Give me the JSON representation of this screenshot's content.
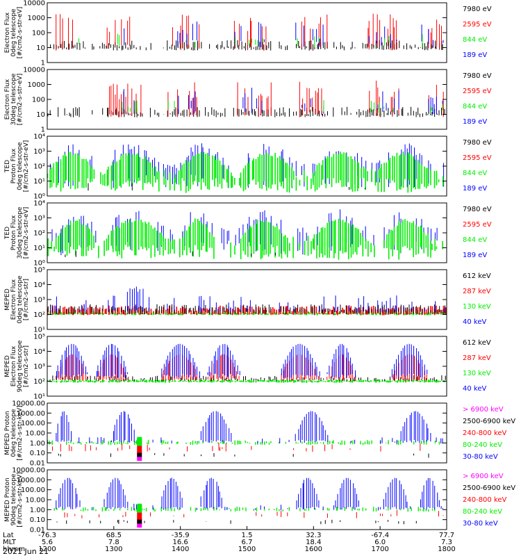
{
  "colors": {
    "black": "#000000",
    "red": "#ff0000",
    "green": "#00ee00",
    "blue": "#0000ff",
    "magenta": "#ff00ff"
  },
  "chart_data": [
    {
      "type": "line",
      "ylabel": "Electron Flux\n0deg telescope\n[#/cm2-s-str-eV]",
      "yscale": "log",
      "ylim": [
        1,
        10000
      ],
      "yticks": [
        "1",
        "10",
        "100",
        "1000",
        "10000"
      ],
      "legend": [
        {
          "name": "7980 eV",
          "color": "black"
        },
        {
          "name": "2595 eV",
          "color": "red"
        },
        {
          "name": "844 eV",
          "color": "green"
        },
        {
          "name": "189 eV",
          "color": "blue"
        }
      ],
      "style": "electron",
      "passes": [
        [
          0.02,
          0.08
        ],
        [
          0.14,
          0.22
        ],
        [
          0.3,
          0.38
        ],
        [
          0.46,
          0.56
        ],
        [
          0.62,
          0.7
        ],
        [
          0.8,
          0.88
        ],
        [
          0.93,
          0.99
        ]
      ]
    },
    {
      "type": "line",
      "ylabel": "Electron Flux\n30deg telescope\n[#/cm2-s-str-eV]",
      "yscale": "log",
      "ylim": [
        1,
        10000
      ],
      "yticks": [
        "1",
        "10",
        "100",
        "1000",
        "10000"
      ],
      "legend": [
        {
          "name": "7980 eV",
          "color": "black"
        },
        {
          "name": "2595 eV",
          "color": "red"
        },
        {
          "name": "844 eV",
          "color": "green"
        },
        {
          "name": "189 eV",
          "color": "blue"
        }
      ],
      "style": "electron",
      "passes": [
        [
          0.15,
          0.24
        ],
        [
          0.3,
          0.38
        ],
        [
          0.47,
          0.56
        ],
        [
          0.63,
          0.7
        ],
        [
          0.8,
          0.88
        ],
        [
          0.95,
          0.99
        ]
      ]
    },
    {
      "type": "line",
      "ylabel": "TED\nProton Flux\n0deg telescope\n[#/cm2-s-str-eV]",
      "yscale": "log",
      "ylim": [
        1,
        10000
      ],
      "yticks": [
        "10⁰",
        "10¹",
        "10²",
        "10³",
        "10⁴"
      ],
      "legend": [
        {
          "name": "7980 eV",
          "color": "black"
        },
        {
          "name": "2595 eV",
          "color": "red"
        },
        {
          "name": "844 eV",
          "color": "green"
        },
        {
          "name": "189 eV",
          "color": "blue"
        }
      ],
      "style": "proton",
      "passes": [
        [
          0.0,
          0.12
        ],
        [
          0.14,
          0.28
        ],
        [
          0.32,
          0.46
        ],
        [
          0.48,
          0.62
        ],
        [
          0.66,
          0.8
        ],
        [
          0.82,
          0.96
        ]
      ]
    },
    {
      "type": "line",
      "ylabel": "TED\nProton Flux\n30deg telescope\n[#/cm2-s-str-eV]",
      "yscale": "log",
      "ylim": [
        1,
        10000
      ],
      "yticks": [
        "10⁰",
        "10¹",
        "10²",
        "10³",
        "10⁴"
      ],
      "legend": [
        {
          "name": "7980 eV",
          "color": "black"
        },
        {
          "name": "2595 eV",
          "color": "red"
        },
        {
          "name": "844 eV",
          "color": "green"
        },
        {
          "name": "189 eV",
          "color": "blue"
        }
      ],
      "style": "proton",
      "passes": [
        [
          0.02,
          0.12
        ],
        [
          0.14,
          0.3
        ],
        [
          0.33,
          0.42
        ],
        [
          0.48,
          0.6
        ],
        [
          0.66,
          0.8
        ],
        [
          0.84,
          0.96
        ]
      ]
    },
    {
      "type": "line",
      "ylabel": "MEPED\nElectron Flux\n0deg telescope\n[#/cm2-s-str]",
      "yscale": "log",
      "ylim": [
        10,
        100000
      ],
      "yticks": [
        "10¹",
        "10²",
        "10³",
        "10⁴",
        "10⁵"
      ],
      "legend": [
        {
          "name": "612 keV",
          "color": "black"
        },
        {
          "name": "287 keV",
          "color": "red"
        },
        {
          "name": "130 keV",
          "color": "green"
        },
        {
          "name": "40 keV",
          "color": "blue"
        }
      ],
      "style": "meped0",
      "passes": [
        [
          0.2,
          0.24
        ]
      ]
    },
    {
      "type": "line",
      "ylabel": "MEPED\nElectron Flux\n90deg telescope\n[#/cm2-s-str]",
      "yscale": "log",
      "ylim": [
        10,
        100000
      ],
      "yticks": [
        "10¹",
        "10²",
        "10³",
        "10⁴",
        "10⁵"
      ],
      "legend": [
        {
          "name": "612 keV",
          "color": "black"
        },
        {
          "name": "287 keV",
          "color": "red"
        },
        {
          "name": "130 keV",
          "color": "green"
        },
        {
          "name": "40 keV",
          "color": "blue"
        }
      ],
      "style": "meped90",
      "passes": [
        [
          0.02,
          0.1
        ],
        [
          0.12,
          0.2
        ],
        [
          0.28,
          0.38
        ],
        [
          0.4,
          0.48
        ],
        [
          0.58,
          0.68
        ],
        [
          0.7,
          0.77
        ],
        [
          0.86,
          0.95
        ]
      ]
    },
    {
      "type": "line",
      "ylabel": "MEPED Proton\n0deg telescope\n[#/cm2-s-str-keV]",
      "yscale": "log",
      "ylim": [
        0.01,
        10000
      ],
      "yticks": [
        "0.01",
        "0.10",
        "1.00",
        "10.00",
        "100.00",
        "1000.00",
        "10000.00"
      ],
      "legend": [
        {
          "name": "> 6900 keV",
          "color": "magenta"
        },
        {
          "name": "2500-6900 keV",
          "color": "black"
        },
        {
          "name": "240-800 keV",
          "color": "red"
        },
        {
          "name": "80-240 keV",
          "color": "green"
        },
        {
          "name": "30-80 keV",
          "color": "blue"
        }
      ],
      "style": "proton_meped",
      "passes": [
        [
          0.02,
          0.06
        ],
        [
          0.16,
          0.22
        ],
        [
          0.38,
          0.46
        ],
        [
          0.62,
          0.7
        ],
        [
          0.88,
          0.96
        ]
      ]
    },
    {
      "type": "line",
      "ylabel": "MEPED Proton\n90deg telescope\n[#/cm2-s-str-keV]",
      "yscale": "log",
      "ylim": [
        0.01,
        10000
      ],
      "yticks": [
        "0.01",
        "0.10",
        "1.00",
        "10.00",
        "100.00",
        "1000.00",
        "10000.00"
      ],
      "legend": [
        {
          "name": "> 6900 keV",
          "color": "magenta"
        },
        {
          "name": "2500-6900 keV",
          "color": "black"
        },
        {
          "name": "240-800 keV",
          "color": "red"
        },
        {
          "name": "80-240 keV",
          "color": "green"
        },
        {
          "name": "30-80 keV",
          "color": "blue"
        }
      ],
      "style": "proton_meped",
      "passes": [
        [
          0.02,
          0.08
        ],
        [
          0.14,
          0.2
        ],
        [
          0.28,
          0.34
        ],
        [
          0.38,
          0.44
        ],
        [
          0.62,
          0.68
        ],
        [
          0.72,
          0.78
        ],
        [
          0.84,
          0.9
        ],
        [
          0.93,
          0.98
        ]
      ]
    }
  ],
  "x_axis": {
    "rows": [
      {
        "label": "Lat",
        "values": [
          "-76.3",
          "68.5",
          "-35.9",
          "1.5",
          "32.3",
          "-67.4",
          "77.7"
        ]
      },
      {
        "label": "MLT",
        "values": [
          "5.6",
          "7.8",
          "16.6",
          "6.7",
          "18.4",
          "6.0",
          "7.3"
        ]
      },
      {
        "label": "hhmm",
        "values": [
          "1200",
          "1300",
          "1400",
          "1500",
          "1600",
          "1700",
          "1800"
        ]
      }
    ],
    "date": "2021 Jun 21"
  }
}
